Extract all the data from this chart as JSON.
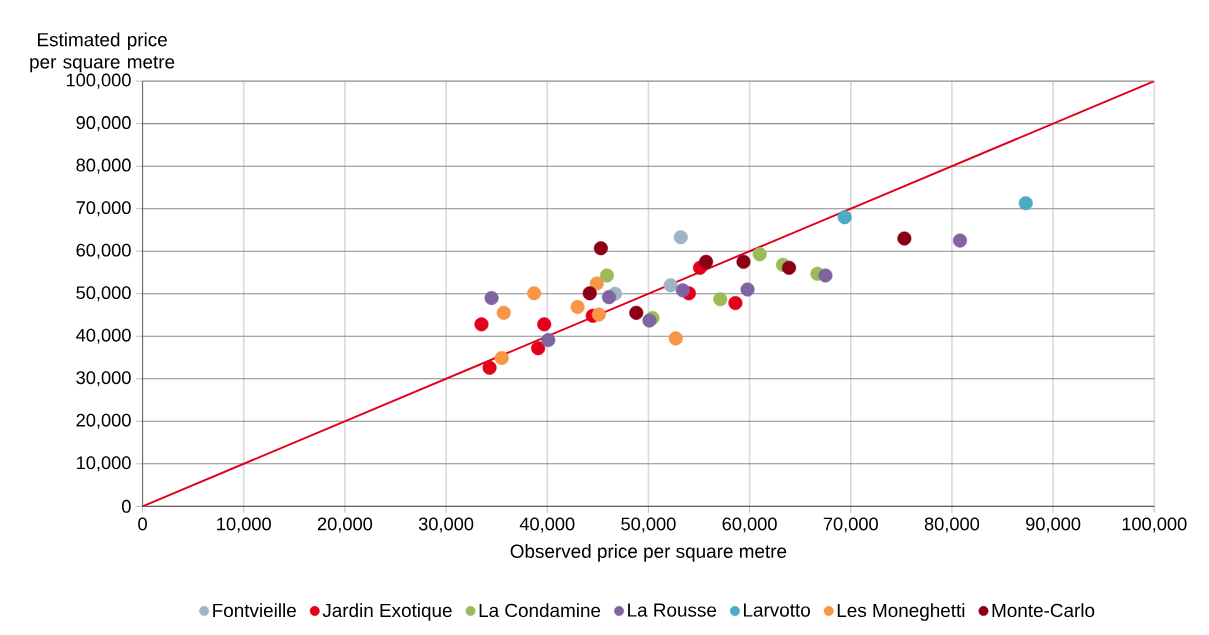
{
  "chart_data": {
    "type": "scatter",
    "xlabel": "Observed price per square metre",
    "ylabel": "Estimated price per square metre",
    "xlim": [
      0,
      100000
    ],
    "ylim": [
      0,
      100000
    ],
    "xticks": [
      0,
      {
        "value": 10000,
        "label": "10,000"
      },
      {
        "value": 20000,
        "label": "20,000"
      },
      {
        "value": 30000,
        "label": "30,000"
      },
      {
        "value": 40000,
        "label": "40,000"
      },
      {
        "value": 50000,
        "label": "50,000"
      },
      {
        "value": 60000,
        "label": "60,000"
      },
      {
        "value": 70000,
        "label": "70,000"
      },
      {
        "value": 80000,
        "label": "80,000"
      },
      {
        "value": 90000,
        "label": "90,000"
      },
      {
        "value": 100000,
        "label": "100,000"
      }
    ],
    "yticks": [
      0,
      {
        "value": 10000,
        "label": "10,000"
      },
      {
        "value": 20000,
        "label": "20,000"
      },
      {
        "value": 30000,
        "label": "30,000"
      },
      {
        "value": 40000,
        "label": "40,000"
      },
      {
        "value": 50000,
        "label": "50,000"
      },
      {
        "value": 60000,
        "label": "60,000"
      },
      {
        "value": 70000,
        "label": "70,000"
      },
      {
        "value": 80000,
        "label": "80,000"
      },
      {
        "value": 90000,
        "label": "90,000"
      },
      {
        "value": 100000,
        "label": "100,000"
      }
    ],
    "grid": true,
    "legend": "bottom",
    "marker": "circle",
    "series": [
      {
        "name": "Fontvieille",
        "color": "#9fb4c7",
        "x": [
          46700,
          53200,
          52200
        ],
        "values": [
          50000,
          63300,
          52000
        ]
      },
      {
        "name": "Jardin Exotique",
        "color": "#e3001b",
        "x": [
          33500,
          34300,
          39700,
          39100,
          44500,
          55100,
          54000,
          58600
        ],
        "values": [
          42800,
          32600,
          42800,
          37200,
          44800,
          56100,
          50100,
          47800
        ]
      },
      {
        "name": "La Condamine",
        "color": "#9bbb59",
        "x": [
          45900,
          50400,
          57100,
          61000,
          63300,
          66700
        ],
        "values": [
          54300,
          44300,
          48700,
          59300,
          56800,
          54700
        ]
      },
      {
        "name": "La Rousse",
        "color": "#8064a2",
        "x": [
          34500,
          40100,
          46100,
          50100,
          53400,
          59800,
          67500,
          80800
        ],
        "values": [
          49000,
          39100,
          49200,
          43700,
          50800,
          51000,
          54300,
          62500
        ]
      },
      {
        "name": "Larvotto",
        "color": "#4bacc6",
        "x": [
          69400,
          87300
        ],
        "values": [
          68000,
          71300
        ]
      },
      {
        "name": "Les Moneghetti",
        "color": "#f79646",
        "x": [
          35700,
          35500,
          38700,
          43000,
          44900,
          45100,
          52700
        ],
        "values": [
          45500,
          34900,
          50100,
          46900,
          52400,
          45100,
          39500
        ]
      },
      {
        "name": "Monte-Carlo",
        "color": "#8b0016",
        "x": [
          45300,
          44200,
          48800,
          55700,
          59400,
          63900,
          75300
        ],
        "values": [
          60700,
          50100,
          45500,
          57500,
          57500,
          56100,
          63000
        ]
      },
      {
        "type": "line",
        "color": "#e3001b",
        "marker": "none",
        "x": [
          0,
          100000
        ],
        "values": [
          0,
          100000
        ]
      }
    ]
  }
}
